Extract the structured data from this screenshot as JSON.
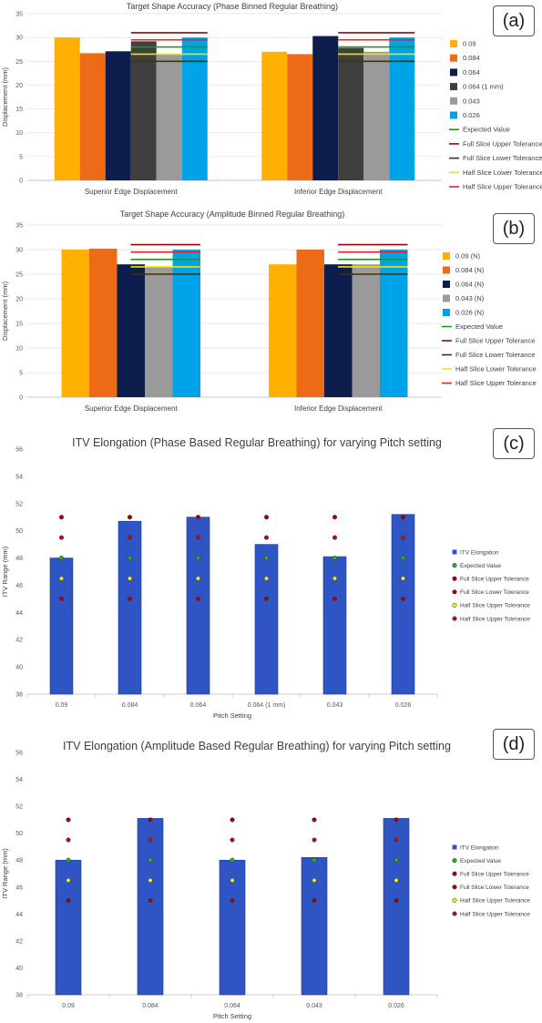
{
  "chart_data": [
    {
      "panel": "(a)",
      "type": "bar",
      "title": "Target Shape Accuracy (Phase Binned Regular Breathing)",
      "xlabel": "",
      "ylabel": "Displacement (mm)",
      "ylim": [
        0,
        35
      ],
      "yticks": [
        0,
        5,
        10,
        15,
        20,
        25,
        30,
        35
      ],
      "categories": [
        "Superior Edge Displacement",
        "Inferior Edge Displacement"
      ],
      "series": [
        {
          "name": "0.09",
          "color": "#FFB000",
          "values": [
            30,
            27
          ]
        },
        {
          "name": "0.084",
          "color": "#ED6A16",
          "values": [
            26.7,
            26.5
          ]
        },
        {
          "name": "0.064",
          "color": "#0D1E4C",
          "values": [
            27.1,
            30.3
          ]
        },
        {
          "name": "0.064 (1 mm)",
          "color": "#3F3F3F",
          "values": [
            29.2,
            27.8
          ]
        },
        {
          "name": "0.043",
          "color": "#9A9A9A",
          "values": [
            26.5,
            27
          ]
        },
        {
          "name": "0.026",
          "color": "#00A2E8",
          "values": [
            30,
            30
          ]
        }
      ],
      "lines": [
        {
          "name": "Expected Value",
          "color": "#1E9A1E",
          "value": 28
        },
        {
          "name": "Full Slice Upper Tolerance",
          "color": "#A0000A",
          "value": 31
        },
        {
          "name": "Full Slice Lower Tolerance",
          "color": "#4A3000",
          "value": 25
        },
        {
          "name": "Half Slice Lower Tolerance",
          "color": "#F2E600",
          "value": 26.5
        },
        {
          "name": "Half Slice Upper Tolerance",
          "color": "#E8202A",
          "value": 29.5
        }
      ],
      "legend_position": "right"
    },
    {
      "panel": "(b)",
      "type": "bar",
      "title": "Target Shape Accuracy (Amplitude Binned Regular Breathing)",
      "xlabel": "",
      "ylabel": "Displacement (mm)",
      "ylim": [
        0,
        35
      ],
      "yticks": [
        0,
        5,
        10,
        15,
        20,
        25,
        30,
        35
      ],
      "categories": [
        "Superior Edge Displacement",
        "Inferior Edge Displacement"
      ],
      "series": [
        {
          "name": "0.09 (N)",
          "color": "#FFB000",
          "values": [
            30,
            27
          ]
        },
        {
          "name": "0.084 (N)",
          "color": "#ED6A16",
          "values": [
            30.2,
            30
          ]
        },
        {
          "name": "0.064 (N)",
          "color": "#0D1E4C",
          "values": [
            27,
            27
          ]
        },
        {
          "name": "0.043 (N)",
          "color": "#9A9A9A",
          "values": [
            26.5,
            27
          ]
        },
        {
          "name": "0.026 (N)",
          "color": "#00A2E8",
          "values": [
            30,
            30
          ]
        }
      ],
      "lines": [
        {
          "name": "Expected Value",
          "color": "#1E9A1E",
          "value": 28
        },
        {
          "name": "Full Slice Upper Tolerance",
          "color": "#A0000A",
          "value": 31
        },
        {
          "name": "Full Slice Lower Tolerance",
          "color": "#4A3000",
          "value": 25
        },
        {
          "name": "Half Slice Lower Tolerance",
          "color": "#F2E600",
          "value": 26.5
        },
        {
          "name": "Half Slice Upper Tolerance",
          "color": "#E8202A",
          "value": 29.5
        }
      ],
      "legend_position": "right"
    },
    {
      "panel": "(c)",
      "type": "bar",
      "title": "ITV Elongation (Phase Based Regular Breathing) for varying Pitch setting",
      "xlabel": "Pitch Setting",
      "ylabel": "ITV Range (mm)",
      "ylim": [
        38,
        56
      ],
      "yticks": [
        38,
        40,
        42,
        44,
        46,
        48,
        50,
        52,
        54,
        56
      ],
      "categories": [
        "0.09",
        "0.084",
        "0.064",
        "0.064 (1 mm)",
        "0.043",
        "0.026"
      ],
      "series": [
        {
          "name": "ITV Elongation",
          "color": "#2F55C4",
          "values": [
            48,
            50.7,
            51,
            49,
            48.1,
            51.2
          ]
        }
      ],
      "markers": [
        {
          "name": "Expected Value",
          "color": "#22B622",
          "value": 48
        },
        {
          "name": "Full Slice Upper Tolerance",
          "color": "#A00010",
          "value": 51
        },
        {
          "name": "Full Slice Lower Tolerance",
          "color": "#A00010",
          "value": 45
        },
        {
          "name": "Half Slice Upper Tolerance",
          "color": "#F2EC1A",
          "value": 46.5
        },
        {
          "name": "Half Slice Upper Tolerance",
          "color": "#B0101A",
          "value": 49.5
        }
      ],
      "legend_position": "right"
    },
    {
      "panel": "(d)",
      "type": "bar",
      "title": "ITV Elongation (Amplitude Based Regular Breathing) for varying Pitch setting",
      "xlabel": "Pitch Setting",
      "ylabel": "ITV Range (mm)",
      "ylim": [
        38,
        56
      ],
      "yticks": [
        38,
        40,
        42,
        44,
        46,
        48,
        50,
        52,
        54,
        56
      ],
      "categories": [
        "0.09",
        "0.084",
        "0.064",
        "0.043",
        "0.026"
      ],
      "series": [
        {
          "name": "ITV Elongation",
          "color": "#2F55C4",
          "values": [
            48,
            51.1,
            48,
            48.2,
            51.1
          ]
        }
      ],
      "markers": [
        {
          "name": "Expected Value",
          "color": "#22B622",
          "value": 48
        },
        {
          "name": "Full Slice Upper Tolerance",
          "color": "#A00010",
          "value": 51
        },
        {
          "name": "Full Slice Lower Tolerance",
          "color": "#A00010",
          "value": 45
        },
        {
          "name": "Half Slice Upper Tolerance",
          "color": "#F2EC1A",
          "value": 46.5
        },
        {
          "name": "Half Slice Upper Tolerance",
          "color": "#B0101A",
          "value": 49.5
        }
      ],
      "legend_position": "right"
    }
  ]
}
